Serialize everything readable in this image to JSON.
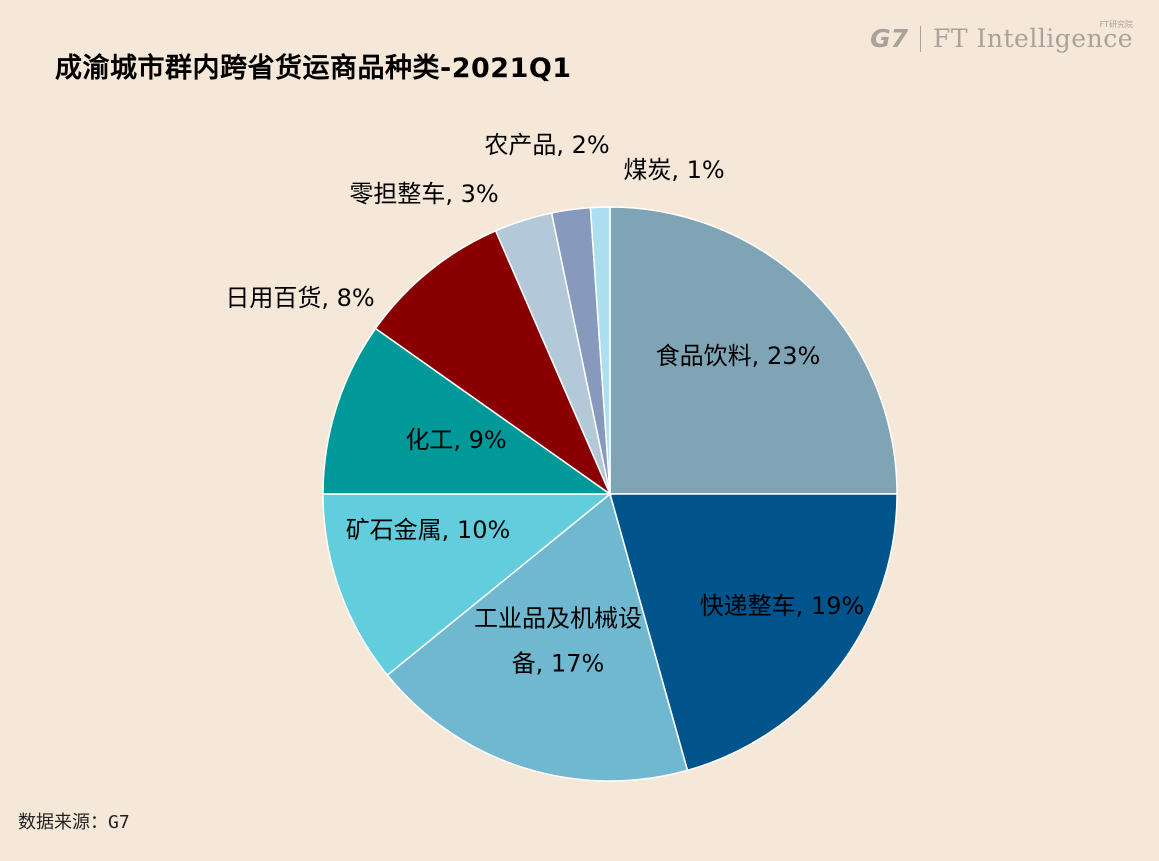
{
  "header": {
    "title": "成渝城市群内跨省货运商品种类-2021Q1",
    "logo_g7": "G7",
    "logo_ft": "FT Intelligence",
    "logo_ft_cn": "FT研究院"
  },
  "footer": {
    "source": "数据来源：G7"
  },
  "chart_data": {
    "type": "pie",
    "title": "成渝城市群内跨省货运商品种类-2021Q1",
    "start_angle": "12 o'clock, clockwise",
    "slices": [
      {
        "name": "食品饮料",
        "value": 23,
        "label_lines": [
          "食品饮料, 23%"
        ],
        "color": "#7fa4b5"
      },
      {
        "name": "快递整车",
        "value": 19,
        "label_lines": [
          "快递整车, 19%"
        ],
        "color": "#00548c"
      },
      {
        "name": "工业品及机械设备",
        "value": 17,
        "label_lines": [
          "工业品及机械设",
          "备, 17%"
        ],
        "color": "#70b8cf"
      },
      {
        "name": "矿石金属",
        "value": 10,
        "label_lines": [
          "矿石金属, 10%"
        ],
        "color": "#62cddc"
      },
      {
        "name": "化工",
        "value": 9,
        "label_lines": [
          "化工, 9%"
        ],
        "color": "#009999"
      },
      {
        "name": "日用百货",
        "value": 8,
        "label_lines": [
          "日用百货, 8%"
        ],
        "color": "#8a0000"
      },
      {
        "name": "零担整车",
        "value": 3,
        "label_lines": [
          "零担整车, 3%"
        ],
        "color": "#b3c9d9"
      },
      {
        "name": "农产品",
        "value": 2,
        "label_lines": [
          "农产品, 2%"
        ],
        "color": "#8799bd"
      },
      {
        "name": "煤炭",
        "value": 1,
        "label_lines": [
          "煤炭, 1%"
        ],
        "color": "#ace0f0"
      }
    ]
  }
}
